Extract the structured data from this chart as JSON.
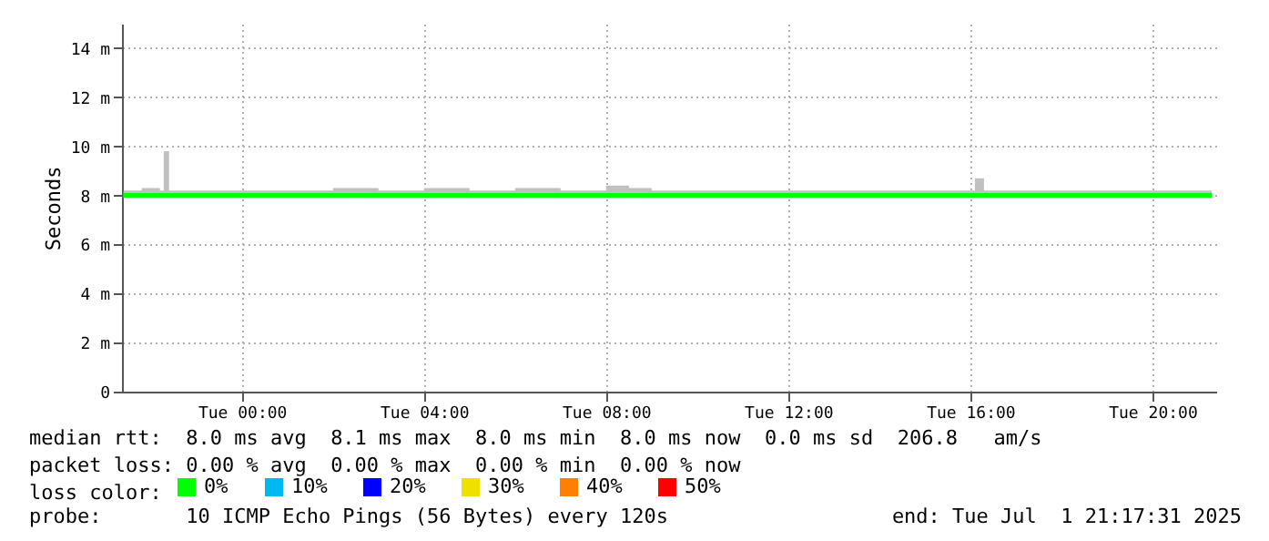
{
  "chart_data": {
    "type": "line",
    "ylabel": "Seconds",
    "legend_title": "loss color:",
    "legend": "bottom",
    "grid": true,
    "x": [
      "2025-06-30T21:24",
      "2025-06-30T21:48",
      "2025-06-30T22:12",
      "2025-06-30T22:17",
      "2025-06-30T22:24",
      "2025-06-30T23:00",
      "2025-07-01T00:00",
      "2025-07-01T01:00",
      "2025-07-01T02:00",
      "2025-07-01T03:00",
      "2025-07-01T04:00",
      "2025-07-01T05:00",
      "2025-07-01T06:00",
      "2025-07-01T07:00",
      "2025-07-01T08:00",
      "2025-07-01T08:30",
      "2025-07-01T09:00",
      "2025-07-01T10:00",
      "2025-07-01T11:00",
      "2025-07-01T12:00",
      "2025-07-01T13:00",
      "2025-07-01T14:00",
      "2025-07-01T15:00",
      "2025-07-01T16:00",
      "2025-07-01T16:06",
      "2025-07-01T16:18",
      "2025-07-01T17:00",
      "2025-07-01T18:00",
      "2025-07-01T19:00",
      "2025-07-01T20:00",
      "2025-07-01T21:00",
      "2025-07-01T21:18"
    ],
    "xlim": [
      "2025-06-30T21:22",
      "2025-07-01T21:24"
    ],
    "xticks": [
      {
        "value": "2025-07-01T00:00",
        "label": "Tue 00:00"
      },
      {
        "value": "2025-07-01T04:00",
        "label": "Tue 04:00"
      },
      {
        "value": "2025-07-01T08:00",
        "label": "Tue 08:00"
      },
      {
        "value": "2025-07-01T12:00",
        "label": "Tue 12:00"
      },
      {
        "value": "2025-07-01T16:00",
        "label": "Tue 16:00"
      },
      {
        "value": "2025-07-01T20:00",
        "label": "Tue 20:00"
      }
    ],
    "ylim": [
      0,
      15
    ],
    "yticks": [
      0,
      {
        "value": 2,
        "label": "2 m"
      },
      {
        "value": 4,
        "label": "4 m"
      },
      {
        "value": 6,
        "label": "6 m"
      },
      {
        "value": 8,
        "label": "8 m"
      },
      {
        "value": 10,
        "label": "10 m"
      },
      {
        "value": 12,
        "label": "12 m"
      },
      {
        "value": 14,
        "label": "14 m"
      }
    ],
    "series": [
      {
        "name": "0%",
        "color": "#00ff00",
        "values": [
          8.0,
          8.0,
          8.0,
          8.0,
          8.0,
          8.0,
          8.0,
          8.0,
          8.0,
          8.0,
          8.0,
          8.0,
          8.0,
          8.0,
          8.0,
          8.0,
          8.0,
          8.0,
          8.0,
          8.0,
          8.0,
          8.0,
          8.0,
          8.0,
          8.0,
          8.0,
          8.0,
          8.0,
          8.0,
          8.0,
          8.0,
          8.0
        ],
        "lower": [
          7.9,
          7.9,
          7.9,
          7.9,
          7.9,
          7.9,
          7.9,
          7.9,
          7.9,
          7.9,
          7.9,
          7.9,
          7.9,
          7.9,
          7.9,
          7.9,
          7.9,
          7.9,
          7.9,
          7.9,
          7.9,
          7.9,
          7.9,
          7.9,
          7.9,
          7.9,
          7.9,
          7.9,
          7.9,
          7.9,
          7.9,
          7.9
        ],
        "upper": [
          8.2,
          8.3,
          8.2,
          9.8,
          8.2,
          8.2,
          8.2,
          8.2,
          8.3,
          8.2,
          8.3,
          8.2,
          8.3,
          8.2,
          8.4,
          8.3,
          8.2,
          8.2,
          8.2,
          8.2,
          8.2,
          8.2,
          8.2,
          8.2,
          8.7,
          8.2,
          8.2,
          8.2,
          8.2,
          8.2,
          8.2,
          8.2
        ]
      },
      {
        "name": "10%",
        "color": "#00b8f0",
        "values": [
          null,
          null,
          null,
          null,
          null,
          null,
          null,
          null,
          null,
          null,
          null,
          null,
          null,
          null,
          null,
          null,
          null,
          null,
          null,
          null,
          null,
          null,
          null,
          null,
          null,
          null,
          null,
          null,
          null,
          null,
          null,
          null
        ]
      },
      {
        "name": "20%",
        "color": "#0000ff",
        "values": [
          null,
          null,
          null,
          null,
          null,
          null,
          null,
          null,
          null,
          null,
          null,
          null,
          null,
          null,
          null,
          null,
          null,
          null,
          null,
          null,
          null,
          null,
          null,
          null,
          null,
          null,
          null,
          null,
          null,
          null,
          null,
          null
        ]
      },
      {
        "name": "30%",
        "color": "#f0e000",
        "values": [
          null,
          null,
          null,
          null,
          null,
          null,
          null,
          null,
          null,
          null,
          null,
          null,
          null,
          null,
          null,
          null,
          null,
          null,
          null,
          null,
          null,
          null,
          null,
          null,
          null,
          null,
          null,
          null,
          null,
          null,
          null,
          null
        ]
      },
      {
        "name": "40%",
        "color": "#ff8000",
        "values": [
          null,
          null,
          null,
          null,
          null,
          null,
          null,
          null,
          null,
          null,
          null,
          null,
          null,
          null,
          null,
          null,
          null,
          null,
          null,
          null,
          null,
          null,
          null,
          null,
          null,
          null,
          null,
          null,
          null,
          null,
          null,
          null
        ]
      },
      {
        "name": "50%",
        "color": "#ff0000",
        "values": [
          null,
          null,
          null,
          null,
          null,
          null,
          null,
          null,
          null,
          null,
          null,
          null,
          null,
          null,
          null,
          null,
          null,
          null,
          null,
          null,
          null,
          null,
          null,
          null,
          null,
          null,
          null,
          null,
          null,
          null,
          null,
          null
        ]
      }
    ],
    "annotations": [
      "median rtt:  8.0 ms avg  8.1 ms max  8.0 ms min  8.0 ms now  0.0 ms sd  206.8   am/s",
      "packet loss: 0.00 % avg  0.00 % max  0.00 % min  0.00 % now",
      "probe:       10 ICMP Echo Pings (56 Bytes) every 120s",
      "end: Tue Jul  1 21:17:31 2025"
    ]
  }
}
